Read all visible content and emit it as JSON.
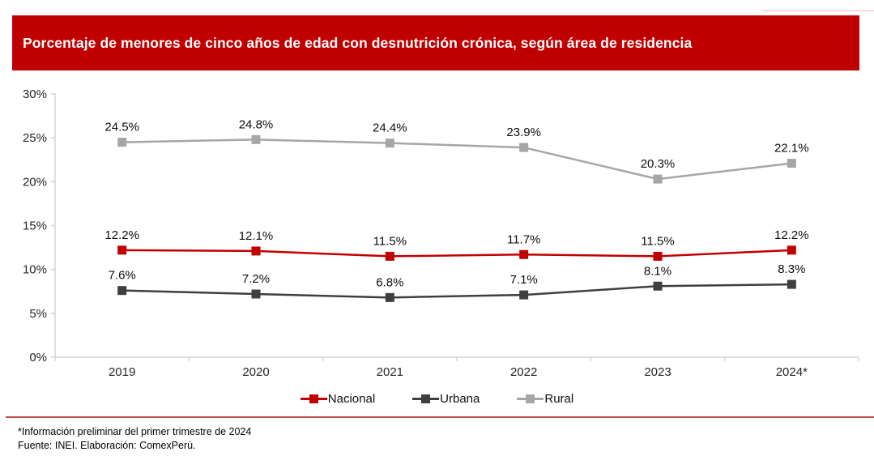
{
  "header": {
    "title": "Porcentaje de menores de cinco años de edad con desnutrición crónica, según área de residencia",
    "banner_color": "#c00000"
  },
  "chart_data": {
    "type": "line",
    "title": "Porcentaje de menores de cinco años de edad con desnutrición crónica, según área de residencia",
    "categories": [
      "2019",
      "2020",
      "2021",
      "2022",
      "2023",
      "2024*"
    ],
    "series": [
      {
        "name": "Nacional",
        "color": "#c00000",
        "values": [
          12.2,
          12.1,
          11.5,
          11.7,
          11.5,
          12.2
        ]
      },
      {
        "name": "Urbana",
        "color": "#3f3f3f",
        "values": [
          7.6,
          7.2,
          6.8,
          7.1,
          8.1,
          8.3
        ]
      },
      {
        "name": "Rural",
        "color": "#a6a6a6",
        "values": [
          24.5,
          24.8,
          24.4,
          23.9,
          20.3,
          22.1
        ]
      }
    ],
    "y_ticks": [
      "0%",
      "5%",
      "10%",
      "15%",
      "20%",
      "25%",
      "30%"
    ],
    "ylim": [
      0,
      30
    ],
    "xlabel": "",
    "ylabel": "",
    "grid": false,
    "legend_position": "bottom",
    "axis_color": "#cfcfcf",
    "marker": "square",
    "data_label_format": "one_decimal_percent"
  },
  "footer": {
    "note1": "*Información preliminar del primer trimestre de 2024",
    "note2": "Fuente: INEI. Elaboración: ComexPerú.",
    "rule_color": "#bb4a4a"
  }
}
